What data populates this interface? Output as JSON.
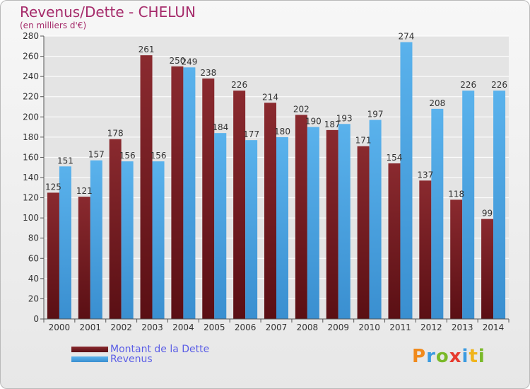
{
  "chart_data": {
    "type": "bar",
    "title": "Revenus/Dette - CHELUN",
    "subtitle": "(en milliers d'€)",
    "categories": [
      "2000",
      "2001",
      "2002",
      "2003",
      "2004",
      "2005",
      "2006",
      "2007",
      "2008",
      "2009",
      "2010",
      "2011",
      "2012",
      "2013",
      "2014"
    ],
    "series": [
      {
        "name": "Montant de la Dette",
        "color": "#7a1f24",
        "values": [
          125,
          121,
          178,
          261,
          250,
          238,
          226,
          214,
          202,
          187,
          171,
          154,
          137,
          118,
          99
        ]
      },
      {
        "name": "Revenus",
        "color": "#4ea6e3",
        "values": [
          151,
          157,
          156,
          156,
          249,
          184,
          177,
          180,
          190,
          193,
          197,
          274,
          208,
          226,
          226
        ]
      }
    ],
    "ylim": [
      0,
      280
    ],
    "yticks": [
      0,
      20,
      40,
      60,
      80,
      100,
      120,
      140,
      160,
      180,
      200,
      220,
      240,
      260,
      280
    ],
    "grid": true,
    "legend_position": "bottom-left"
  },
  "logo": {
    "text": "Proxiti"
  }
}
